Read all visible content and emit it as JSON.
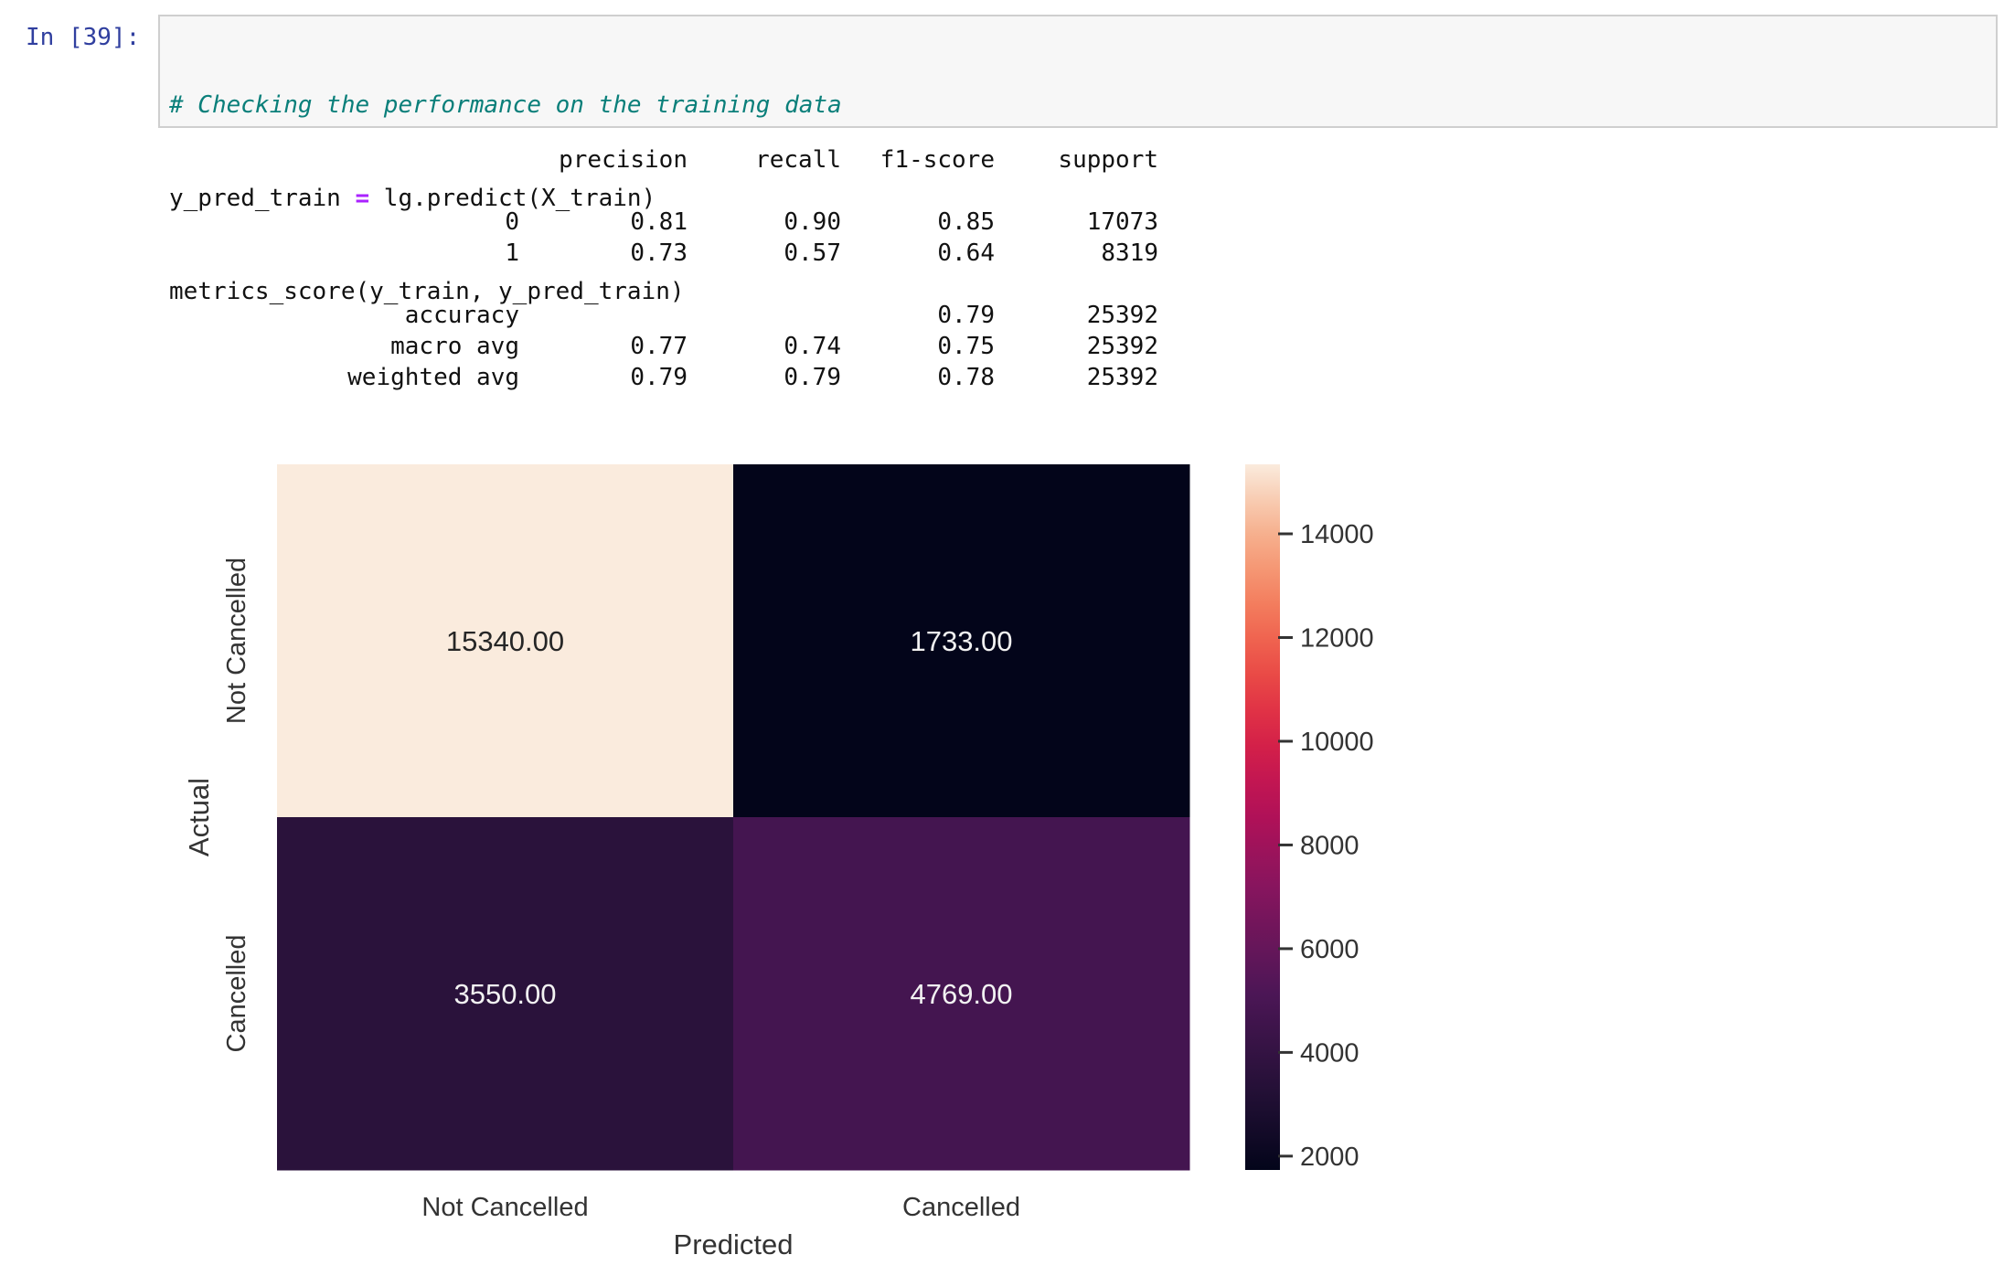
{
  "cell": {
    "prompt": "In [39]:",
    "code": {
      "comment": "# Checking the performance on the training data",
      "line2_lhs": "y_pred_train ",
      "line2_op": "=",
      "line2_rhs": " lg.predict(X_train)",
      "line3": "metrics_score(y_train, y_pred_train)"
    }
  },
  "report": {
    "headers": [
      "precision",
      "recall",
      "f1-score",
      "support"
    ],
    "rows": [
      {
        "label": "0",
        "precision": "0.81",
        "recall": "0.90",
        "f1": "0.85",
        "support": "17073"
      },
      {
        "label": "1",
        "precision": "0.73",
        "recall": "0.57",
        "f1": "0.64",
        "support": "8319"
      },
      {
        "label": "",
        "precision": "",
        "recall": "",
        "f1": "",
        "support": ""
      },
      {
        "label": "accuracy",
        "precision": "",
        "recall": "",
        "f1": "0.79",
        "support": "25392"
      },
      {
        "label": "macro avg",
        "precision": "0.77",
        "recall": "0.74",
        "f1": "0.75",
        "support": "25392"
      },
      {
        "label": "weighted avg",
        "precision": "0.79",
        "recall": "0.79",
        "f1": "0.78",
        "support": "25392"
      }
    ]
  },
  "chart_data": {
    "type": "heatmap",
    "xlabel": "Predicted",
    "ylabel": "Actual",
    "x_categories": [
      "Not Cancelled",
      "Cancelled"
    ],
    "y_categories": [
      "Not Cancelled",
      "Cancelled"
    ],
    "values": [
      [
        15340,
        1733
      ],
      [
        3550,
        4769
      ]
    ],
    "annotations": [
      [
        "15340.00",
        "1733.00"
      ],
      [
        "3550.00",
        "4769.00"
      ]
    ],
    "colorbar": {
      "min": 1733,
      "max": 15340,
      "ticks": [
        2000,
        4000,
        6000,
        8000,
        10000,
        12000,
        14000
      ],
      "tick_labels": [
        "2000",
        "4000",
        "6000",
        "8000",
        "10000",
        "12000",
        "14000"
      ],
      "colormap": "rocket"
    }
  }
}
